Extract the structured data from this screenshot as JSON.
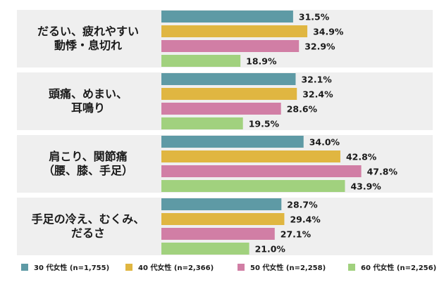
{
  "chart_data": {
    "type": "bar",
    "orientation": "horizontal",
    "categories": [
      [
        "だるい、疲れやすい",
        "動悸・息切れ"
      ],
      [
        "頭痛、めまい、",
        "耳鳴り"
      ],
      [
        "肩こり、関節痛",
        "（腰、膝、手足）"
      ],
      [
        "手足の冷え、むくみ、",
        "だるさ"
      ]
    ],
    "series": [
      {
        "name": "30 代女性 (n=1,755)",
        "color": "#5e9aa5",
        "values": [
          31.5,
          32.1,
          34.0,
          28.7
        ],
        "labels": [
          "31.5%",
          "32.1%",
          "34.0%",
          "28.7%"
        ]
      },
      {
        "name": "40 代女性 (n=2,366)",
        "color": "#e0b641",
        "values": [
          34.9,
          32.4,
          42.8,
          29.4
        ],
        "labels": [
          "34.9%",
          "32.4%",
          "42.8%",
          "29.4%"
        ]
      },
      {
        "name": "50 代女性 (n=2,258)",
        "color": "#d17ea5",
        "values": [
          32.9,
          28.6,
          47.8,
          27.1
        ],
        "labels": [
          "32.9%",
          "28.6%",
          "47.8%",
          "27.1%"
        ]
      },
      {
        "name": "60 代女性 (n=2,256)",
        "color": "#a1d17e",
        "values": [
          18.9,
          19.5,
          43.9,
          21.0
        ],
        "labels": [
          "18.9%",
          "19.5%",
          "43.9%",
          "21.0%"
        ]
      }
    ],
    "xlim": [
      0,
      60
    ],
    "legend_position": "bottom",
    "group_background": "#efefef"
  }
}
